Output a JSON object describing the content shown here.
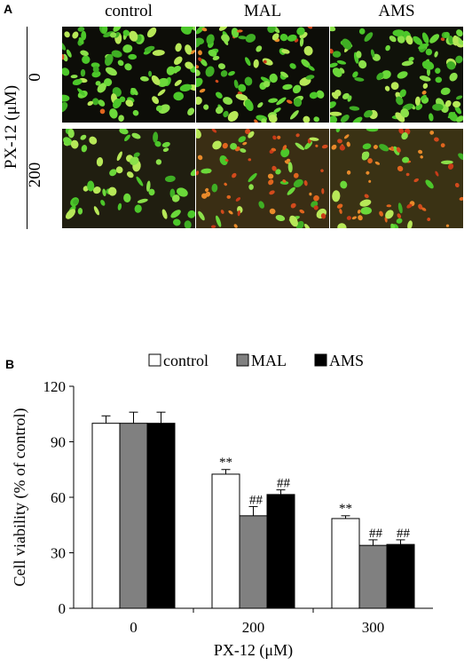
{
  "panel_a": {
    "letter": "A",
    "columns": [
      "control",
      "MAL",
      "AMS"
    ],
    "row_axis_label": "PX-12 (μM)",
    "rows": [
      "0",
      "200"
    ]
  },
  "panel_b": {
    "letter": "B"
  },
  "chart_data": {
    "type": "bar",
    "xlabel": "PX-12 (μM)",
    "ylabel": "Cell viability (% of control)",
    "categories": [
      "0",
      "200",
      "300"
    ],
    "ylim": [
      0,
      120
    ],
    "yticks": [
      "0",
      "30",
      "60",
      "90",
      "120"
    ],
    "legend_position": "top",
    "series": [
      {
        "name": "control",
        "color": "#ffffff",
        "values": [
          100,
          72.5,
          48.5
        ],
        "errors": [
          4,
          2.5,
          1.5
        ],
        "annotations": [
          "",
          "**",
          "**"
        ]
      },
      {
        "name": "MAL",
        "color": "#808080",
        "values": [
          100,
          50,
          34
        ],
        "errors": [
          6,
          5,
          3
        ],
        "annotations": [
          "",
          "##",
          "##"
        ]
      },
      {
        "name": "AMS",
        "color": "#000000",
        "values": [
          100,
          61.5,
          34.5
        ],
        "errors": [
          6,
          2.5,
          2.5
        ],
        "annotations": [
          "",
          "##",
          "##"
        ]
      }
    ]
  }
}
